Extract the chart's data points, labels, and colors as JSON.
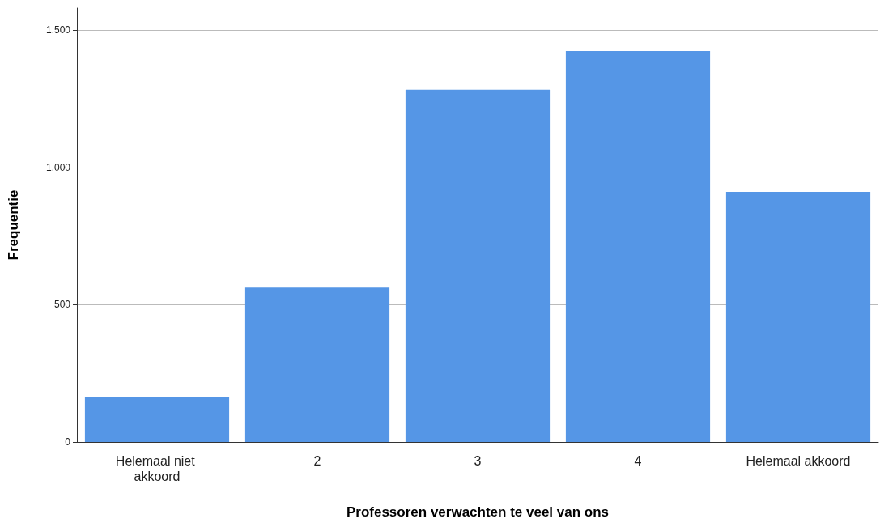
{
  "chart_data": {
    "type": "bar",
    "xlabel": "Professoren verwachten te veel van ons",
    "ylabel": "Frequentie",
    "categories": [
      "Helemaal niet akkoord",
      "2",
      "3",
      "4",
      "Helemaal akkoord"
    ],
    "values": [
      165,
      562,
      1283,
      1424,
      911
    ],
    "color": "#5596e6",
    "ylim": [
      0,
      1580
    ],
    "yticks": [
      0,
      500,
      {
        "value": 1000,
        "label": "1.000"
      },
      {
        "value": 1500,
        "label": "1.500"
      }
    ],
    "grid": "y"
  }
}
